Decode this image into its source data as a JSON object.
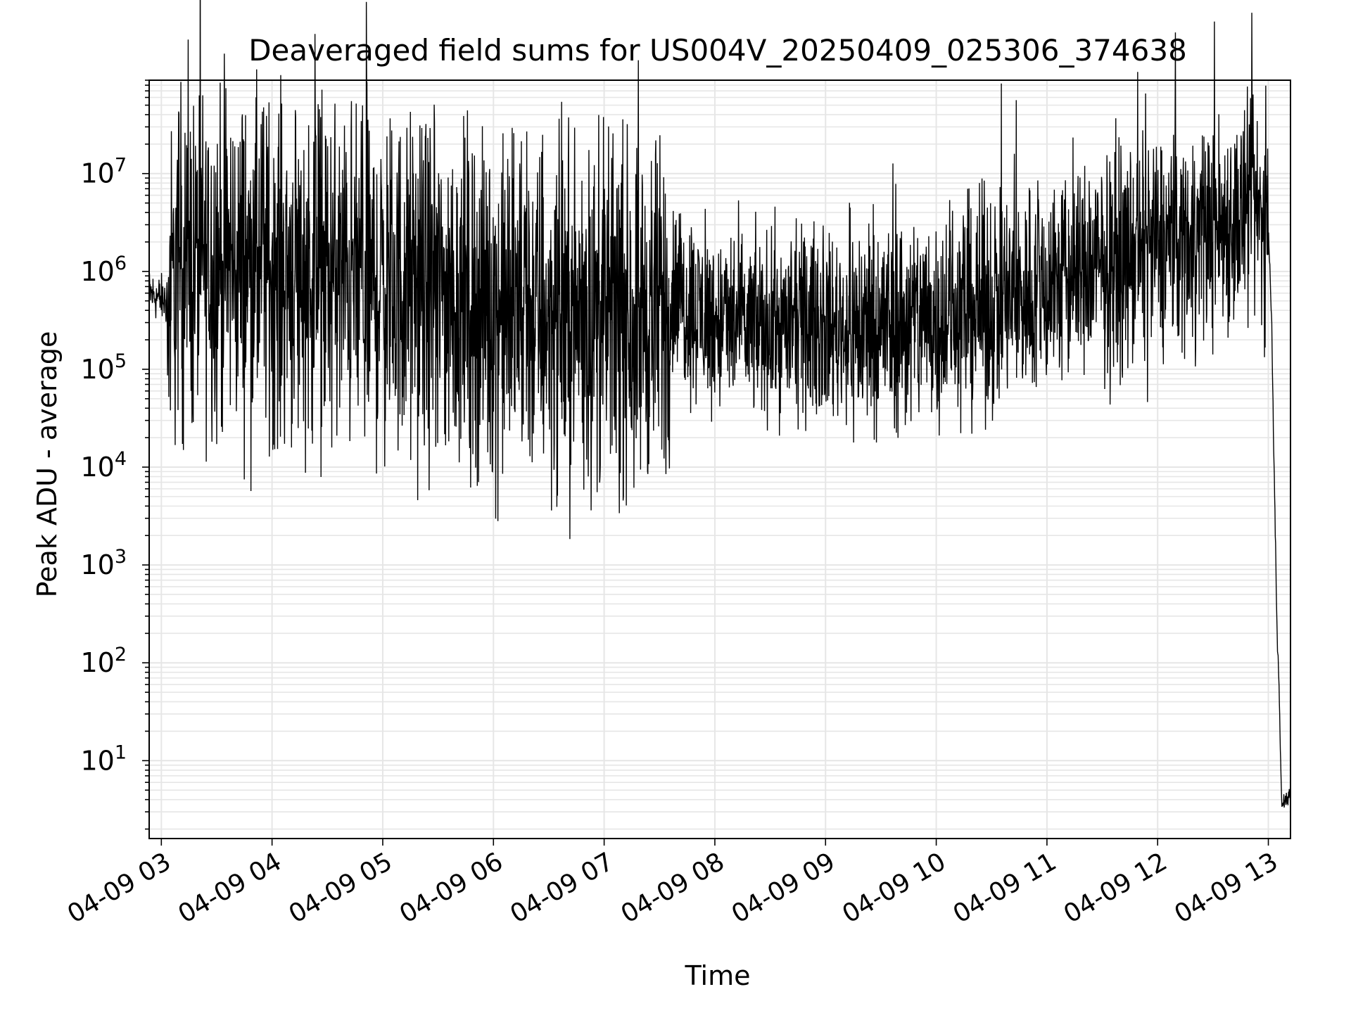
{
  "chart_data": {
    "type": "line",
    "title": "Deaveraged field sums for US004V_20250409_025306_374638",
    "xlabel": "Time",
    "ylabel": "Peak ADU - average",
    "x_tick_labels": [
      "04-09 03",
      "04-09 04",
      "04-09 05",
      "04-09 06",
      "04-09 07",
      "04-09 08",
      "04-09 09",
      "04-09 10",
      "04-09 11",
      "04-09 12",
      "04-09 13"
    ],
    "x_ticks_hours": [
      3,
      4,
      5,
      6,
      7,
      8,
      9,
      10,
      11,
      12,
      13
    ],
    "xlim_hours": [
      2.89,
      13.2
    ],
    "yscale": "log",
    "ylim": [
      1.6,
      90000000
    ],
    "y_tick_exponents": [
      1,
      2,
      3,
      4,
      5,
      6,
      7
    ],
    "y_tick_base": "10",
    "grid": true,
    "line_color": "#000000",
    "grid_color": "#e6e6e6",
    "series": [
      {
        "x_hours": [
          2.89,
          3.0,
          3.08,
          3.16,
          3.25,
          3.5,
          3.75,
          4.0,
          4.25,
          4.5,
          4.75,
          5.0,
          5.25,
          5.5,
          5.75,
          6.0,
          6.25,
          6.5,
          6.75,
          7.0,
          7.25,
          7.5,
          7.6,
          7.62,
          7.75,
          8.0,
          8.25,
          8.5,
          8.75,
          9.0,
          9.25,
          9.5,
          9.75,
          10.0,
          10.25,
          10.5,
          10.75,
          11.0,
          11.25,
          11.5,
          11.75,
          12.0,
          12.25,
          12.5,
          12.75,
          12.9,
          13.0,
          13.03,
          13.06,
          13.08,
          13.1,
          13.12,
          13.15,
          13.2
        ],
        "center_values": [
          600000,
          520000,
          480000,
          1500000,
          1200000,
          1300000,
          1200000,
          1100000,
          1000000,
          900000,
          800000,
          700000,
          650000,
          600000,
          500000,
          400000,
          380000,
          350000,
          350000,
          330000,
          350000,
          380000,
          400000,
          600000,
          450000,
          300000,
          280000,
          270000,
          280000,
          270000,
          260000,
          280000,
          300000,
          350000,
          400000,
          450000,
          550000,
          700000,
          900000,
          1100000,
          1400000,
          1800000,
          2200000,
          2800000,
          3500000,
          4000000,
          3000000,
          300000,
          3000,
          200,
          40,
          4,
          4,
          4
        ]
      }
    ]
  }
}
